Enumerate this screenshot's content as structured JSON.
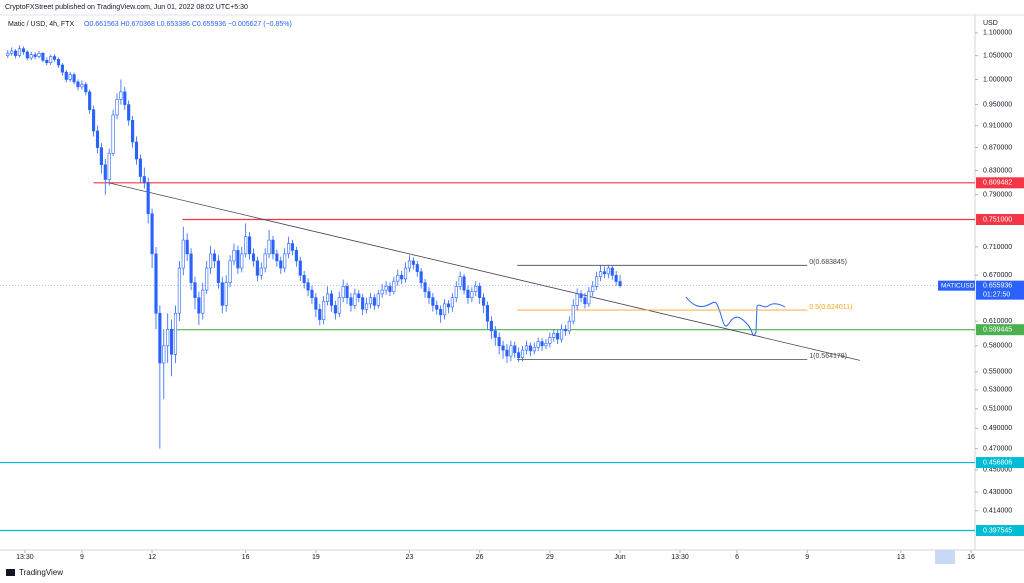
{
  "header": {
    "publisher": "CryptoFXStreet published on TradingView.com, Jun 01, 2022 08:02 UTC+5:30",
    "symbol": "Matic / USD, 4h, FTX",
    "ohlc": "O0.661563 H0.670368 L0.653386 C0.655936 −0.005627 (−0.85%)"
  },
  "footer": {
    "brand": "TradingView"
  },
  "chart_data": {
    "type": "candlestick",
    "ylabel": "USD",
    "ylog": true,
    "grid": false,
    "up_color": "#ffffff",
    "down_color": "#2962ff",
    "wick_color": "#2962ff",
    "xlim": [
      5.5,
      47.17
    ],
    "xticks": [
      {
        "value": 6.5625,
        "label": "13:30"
      },
      9,
      12,
      16,
      19,
      23,
      26,
      29,
      {
        "value": 32,
        "label": "Jun"
      },
      {
        "value": 34.5625,
        "label": "13:30"
      },
      {
        "value": 37,
        "label": "6"
      },
      {
        "value": 40,
        "label": "9"
      },
      {
        "value": 44,
        "label": "13"
      },
      {
        "value": 47,
        "label": "16"
      }
    ],
    "ylim": [
      0.382,
      1.134
    ],
    "yticks": [
      {
        "value": 1.1,
        "label": "1.100000"
      },
      {
        "value": 1.05,
        "label": "1.050000"
      },
      {
        "value": 1.0,
        "label": "1.000000"
      },
      {
        "value": 0.95,
        "label": "0.950000"
      },
      {
        "value": 0.91,
        "label": "0.910000"
      },
      {
        "value": 0.87,
        "label": "0.870000"
      },
      {
        "value": 0.83,
        "label": "0.830000"
      },
      {
        "value": 0.79,
        "label": "0.790000"
      },
      {
        "value": 0.71,
        "label": "0.710000"
      },
      {
        "value": 0.67,
        "label": "0.670000"
      },
      {
        "value": 0.61,
        "label": "0.610000"
      },
      {
        "value": 0.58,
        "label": "0.580000"
      },
      {
        "value": 0.55,
        "label": "0.550000"
      },
      {
        "value": 0.53,
        "label": "0.530000"
      },
      {
        "value": 0.51,
        "label": "0.510000"
      },
      {
        "value": 0.49,
        "label": "0.490000"
      },
      {
        "value": 0.47,
        "label": "0.470000"
      },
      {
        "value": 0.45,
        "label": "0.450000"
      },
      {
        "value": 0.43,
        "label": "0.430000"
      },
      {
        "value": 0.414,
        "label": "0.414000"
      }
    ],
    "x": [
      5.833,
      6,
      6.167,
      6.333,
      6.5,
      6.667,
      6.833,
      7,
      7.167,
      7.333,
      7.5,
      7.667,
      7.833,
      8,
      8.167,
      8.333,
      8.5,
      8.667,
      8.833,
      9,
      9.167,
      9.333,
      9.5,
      9.667,
      9.833,
      10,
      10.167,
      10.333,
      10.5,
      10.667,
      10.833,
      11,
      11.167,
      11.333,
      11.5,
      11.667,
      11.833,
      12,
      12.167,
      12.333,
      12.5,
      12.667,
      12.833,
      13,
      13.167,
      13.333,
      13.5,
      13.667,
      13.833,
      14,
      14.167,
      14.333,
      14.5,
      14.667,
      14.833,
      15,
      15.167,
      15.333,
      15.5,
      15.667,
      15.833,
      16,
      16.167,
      16.333,
      16.5,
      16.667,
      16.833,
      17,
      17.167,
      17.333,
      17.5,
      17.667,
      17.833,
      18,
      18.167,
      18.333,
      18.5,
      18.667,
      18.833,
      19,
      19.167,
      19.333,
      19.5,
      19.667,
      19.833,
      20,
      20.167,
      20.333,
      20.5,
      20.667,
      20.833,
      21,
      21.167,
      21.333,
      21.5,
      21.667,
      21.833,
      22,
      22.167,
      22.333,
      22.5,
      22.667,
      22.833,
      23,
      23.167,
      23.333,
      23.5,
      23.667,
      23.833,
      24,
      24.167,
      24.333,
      24.5,
      24.667,
      24.833,
      25,
      25.167,
      25.333,
      25.5,
      25.667,
      25.833,
      26,
      26.167,
      26.333,
      26.5,
      26.667,
      26.833,
      27,
      27.167,
      27.333,
      27.5,
      27.667,
      27.833,
      28,
      28.167,
      28.333,
      28.5,
      28.667,
      28.833,
      29,
      29.167,
      29.333,
      29.5,
      29.667,
      29.833,
      30,
      30.167,
      30.333,
      30.5,
      30.667,
      30.833,
      31,
      31.167,
      31.333,
      31.5,
      31.667,
      31.833,
      32
    ],
    "open": [
      1.05,
      1.055,
      1.06,
      1.05,
      1.065,
      1.058,
      1.045,
      1.052,
      1.048,
      1.055,
      1.04,
      1.035,
      1.048,
      1.042,
      1.03,
      1.015,
      1.0,
      1.01,
      0.995,
      0.985,
      0.99,
      0.975,
      0.94,
      0.9,
      0.87,
      0.84,
      0.815,
      0.86,
      0.93,
      0.96,
      0.975,
      0.95,
      0.92,
      0.88,
      0.85,
      0.82,
      0.81,
      0.76,
      0.7,
      0.62,
      0.56,
      0.58,
      0.6,
      0.57,
      0.62,
      0.68,
      0.72,
      0.7,
      0.66,
      0.64,
      0.62,
      0.65,
      0.68,
      0.7,
      0.69,
      0.66,
      0.63,
      0.66,
      0.69,
      0.705,
      0.68,
      0.7,
      0.725,
      0.7,
      0.69,
      0.67,
      0.68,
      0.7,
      0.72,
      0.7,
      0.69,
      0.68,
      0.7,
      0.715,
      0.705,
      0.69,
      0.67,
      0.66,
      0.65,
      0.64,
      0.625,
      0.612,
      0.635,
      0.645,
      0.63,
      0.62,
      0.64,
      0.655,
      0.64,
      0.63,
      0.645,
      0.64,
      0.625,
      0.632,
      0.64,
      0.63,
      0.645,
      0.65,
      0.655,
      0.648,
      0.662,
      0.67,
      0.665,
      0.68,
      0.69,
      0.685,
      0.675,
      0.66,
      0.648,
      0.64,
      0.63,
      0.625,
      0.618,
      0.632,
      0.628,
      0.64,
      0.655,
      0.668,
      0.65,
      0.64,
      0.648,
      0.655,
      0.64,
      0.63,
      0.61,
      0.598,
      0.59,
      0.58,
      0.575,
      0.568,
      0.58,
      0.572,
      0.566,
      0.575,
      0.58,
      0.574,
      0.578,
      0.585,
      0.58,
      0.583,
      0.59,
      0.595,
      0.588,
      0.6,
      0.598,
      0.61,
      0.63,
      0.645,
      0.64,
      0.632,
      0.648,
      0.655,
      0.668,
      0.675,
      0.672,
      0.68,
      0.67,
      0.661563
    ],
    "high": [
      1.062,
      1.068,
      1.064,
      1.072,
      1.07,
      1.061,
      1.058,
      1.057,
      1.06,
      1.058,
      1.046,
      1.052,
      1.053,
      1.046,
      1.034,
      1.02,
      1.016,
      1.014,
      1.0,
      0.998,
      0.995,
      0.98,
      0.948,
      0.91,
      0.878,
      0.85,
      0.868,
      0.94,
      0.972,
      1.0,
      0.985,
      0.958,
      0.928,
      0.89,
      0.858,
      0.835,
      0.818,
      0.768,
      0.71,
      0.63,
      0.6,
      0.62,
      0.612,
      0.63,
      0.69,
      0.74,
      0.73,
      0.708,
      0.668,
      0.648,
      0.66,
      0.69,
      0.712,
      0.706,
      0.698,
      0.668,
      0.67,
      0.698,
      0.715,
      0.712,
      0.71,
      0.745,
      0.732,
      0.708,
      0.696,
      0.688,
      0.708,
      0.735,
      0.726,
      0.706,
      0.696,
      0.708,
      0.725,
      0.72,
      0.71,
      0.696,
      0.676,
      0.666,
      0.656,
      0.646,
      0.632,
      0.642,
      0.655,
      0.65,
      0.636,
      0.648,
      0.664,
      0.66,
      0.646,
      0.652,
      0.65,
      0.645,
      0.64,
      0.646,
      0.645,
      0.65,
      0.658,
      0.662,
      0.66,
      0.668,
      0.678,
      0.676,
      0.688,
      0.698,
      0.695,
      0.69,
      0.68,
      0.665,
      0.654,
      0.646,
      0.636,
      0.63,
      0.638,
      0.637,
      0.646,
      0.662,
      0.675,
      0.672,
      0.656,
      0.654,
      0.662,
      0.66,
      0.646,
      0.635,
      0.616,
      0.604,
      0.596,
      0.586,
      0.582,
      0.586,
      0.585,
      0.578,
      0.58,
      0.586,
      0.584,
      0.584,
      0.59,
      0.589,
      0.588,
      0.596,
      0.6,
      0.599,
      0.606,
      0.605,
      0.616,
      0.638,
      0.652,
      0.65,
      0.646,
      0.654,
      0.662,
      0.675,
      0.684,
      0.682,
      0.684,
      0.683,
      0.676,
      0.670368
    ],
    "low": [
      1.045,
      1.05,
      1.044,
      1.046,
      1.052,
      1.04,
      1.04,
      1.042,
      1.044,
      1.036,
      1.03,
      1.03,
      1.037,
      1.024,
      1.008,
      0.994,
      0.995,
      0.99,
      0.978,
      0.98,
      0.968,
      0.932,
      0.89,
      0.86,
      0.825,
      0.79,
      0.805,
      0.855,
      0.922,
      0.95,
      0.94,
      0.91,
      0.87,
      0.84,
      0.81,
      0.8,
      0.745,
      0.68,
      0.6,
      0.47,
      0.52,
      0.56,
      0.545,
      0.56,
      0.61,
      0.67,
      0.69,
      0.65,
      0.625,
      0.605,
      0.612,
      0.645,
      0.672,
      0.68,
      0.652,
      0.62,
      0.622,
      0.654,
      0.684,
      0.672,
      0.674,
      0.695,
      0.692,
      0.682,
      0.662,
      0.664,
      0.674,
      0.694,
      0.692,
      0.682,
      0.672,
      0.674,
      0.694,
      0.698,
      0.682,
      0.662,
      0.652,
      0.642,
      0.632,
      0.615,
      0.605,
      0.606,
      0.63,
      0.622,
      0.612,
      0.615,
      0.634,
      0.632,
      0.622,
      0.625,
      0.634,
      0.618,
      0.62,
      0.626,
      0.624,
      0.626,
      0.64,
      0.644,
      0.642,
      0.644,
      0.656,
      0.658,
      0.66,
      0.674,
      0.678,
      0.668,
      0.652,
      0.64,
      0.632,
      0.622,
      0.618,
      0.608,
      0.612,
      0.62,
      0.622,
      0.634,
      0.65,
      0.644,
      0.632,
      0.634,
      0.642,
      0.632,
      0.62,
      0.6,
      0.588,
      0.58,
      0.57,
      0.565,
      0.56,
      0.562,
      0.566,
      0.561,
      0.562,
      0.57,
      0.568,
      0.57,
      0.574,
      0.574,
      0.576,
      0.578,
      0.585,
      0.582,
      0.584,
      0.592,
      0.594,
      0.606,
      0.624,
      0.634,
      0.626,
      0.628,
      0.642,
      0.65,
      0.662,
      0.666,
      0.666,
      0.664,
      0.656,
      0.653386
    ],
    "close": [
      1.055,
      1.06,
      1.05,
      1.065,
      1.058,
      1.045,
      1.052,
      1.048,
      1.055,
      1.04,
      1.035,
      1.048,
      1.042,
      1.03,
      1.015,
      1.0,
      1.01,
      0.995,
      0.985,
      0.99,
      0.975,
      0.94,
      0.9,
      0.87,
      0.84,
      0.815,
      0.86,
      0.93,
      0.96,
      0.975,
      0.95,
      0.92,
      0.88,
      0.85,
      0.82,
      0.81,
      0.76,
      0.7,
      0.62,
      0.56,
      0.58,
      0.6,
      0.57,
      0.62,
      0.68,
      0.72,
      0.7,
      0.66,
      0.64,
      0.62,
      0.65,
      0.68,
      0.7,
      0.69,
      0.66,
      0.63,
      0.66,
      0.69,
      0.705,
      0.68,
      0.7,
      0.725,
      0.7,
      0.69,
      0.67,
      0.68,
      0.7,
      0.72,
      0.7,
      0.69,
      0.68,
      0.7,
      0.715,
      0.705,
      0.69,
      0.67,
      0.66,
      0.65,
      0.64,
      0.625,
      0.612,
      0.635,
      0.645,
      0.63,
      0.62,
      0.64,
      0.655,
      0.64,
      0.63,
      0.645,
      0.64,
      0.625,
      0.632,
      0.64,
      0.63,
      0.645,
      0.65,
      0.655,
      0.648,
      0.662,
      0.67,
      0.665,
      0.68,
      0.69,
      0.685,
      0.675,
      0.66,
      0.648,
      0.64,
      0.63,
      0.625,
      0.618,
      0.632,
      0.628,
      0.64,
      0.655,
      0.668,
      0.65,
      0.64,
      0.648,
      0.655,
      0.64,
      0.63,
      0.61,
      0.598,
      0.59,
      0.58,
      0.575,
      0.568,
      0.58,
      0.572,
      0.566,
      0.575,
      0.58,
      0.574,
      0.578,
      0.585,
      0.58,
      0.583,
      0.59,
      0.595,
      0.588,
      0.6,
      0.598,
      0.61,
      0.63,
      0.645,
      0.64,
      0.632,
      0.648,
      0.655,
      0.668,
      0.675,
      0.672,
      0.68,
      0.67,
      0.661563,
      0.655936
    ],
    "levels": [
      {
        "value": 0.809482,
        "label": "0.809482",
        "color": "#f23645",
        "x_start": 9.5
      },
      {
        "value": 0.751,
        "label": "0.751000",
        "color": "#f23645",
        "x_start": 13.3
      },
      {
        "value": 0.599445,
        "label": "0.599445",
        "color": "#4caf50",
        "x_start": 12.9
      },
      {
        "value": 0.456806,
        "label": "0.456806",
        "color": "#00bcd4",
        "x_start": 5.5
      },
      {
        "value": 0.397545,
        "label": "0.397545",
        "color": "#00bcd4",
        "x_start": 5.5
      }
    ],
    "trendline": {
      "x": [
        10.2,
        42.25
      ],
      "y": [
        0.809,
        0.563
      ],
      "color": "#434651"
    },
    "fib": {
      "x": [
        27.6,
        40
      ],
      "levels": [
        {
          "value": 0.683845,
          "label": "0(0.683845)",
          "color": "#434651"
        },
        {
          "value": 0.624011,
          "label": "0.5(0.624011)",
          "color": "#f5a623"
        },
        {
          "value": 0.564178,
          "label": "1(0.564178)",
          "color": "#434651"
        }
      ]
    },
    "current": {
      "symbol": "MATICUSD",
      "value": 0.655936,
      "countdown": "01:27:50",
      "color": "#2962ff"
    }
  }
}
